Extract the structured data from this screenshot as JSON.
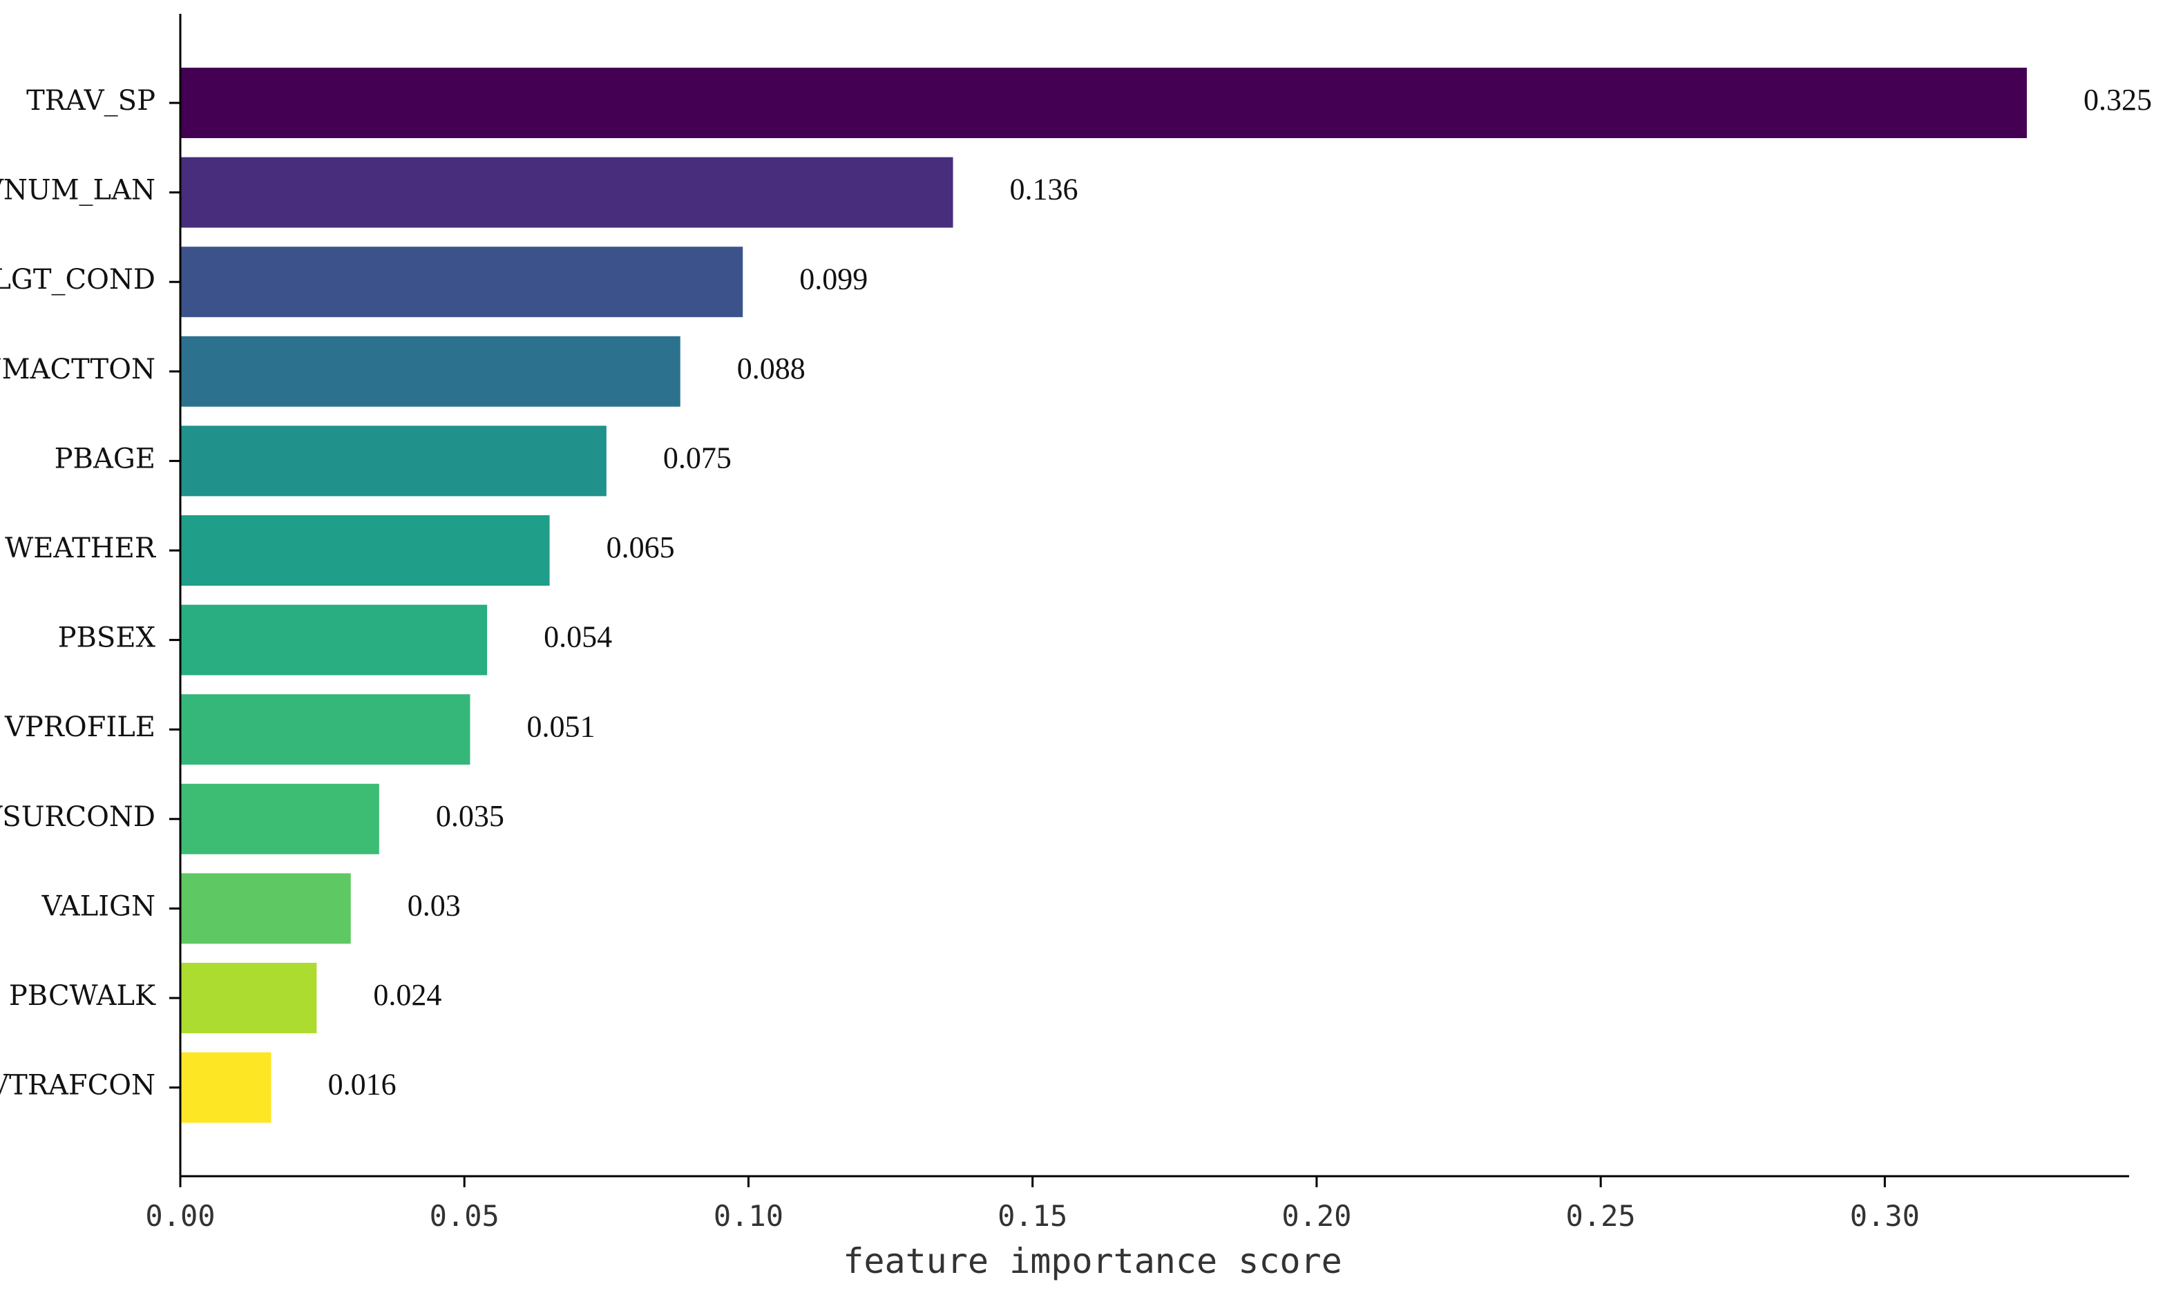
{
  "chart_data": {
    "type": "bar",
    "orientation": "horizontal",
    "categories": [
      "TRAV_SP",
      "VNUM_LAN",
      "LGT_COND",
      "NMACTTON",
      "PBAGE",
      "WEATHER",
      "PBSEX",
      "VPROFILE",
      "VSURCOND",
      "VALIGN",
      "PBCWALK",
      "VTRAFCON"
    ],
    "values": [
      0.325,
      0.136,
      0.099,
      0.088,
      0.075,
      0.065,
      0.054,
      0.051,
      0.035,
      0.03,
      0.024,
      0.016
    ],
    "value_labels": [
      "0.325",
      "0.136",
      "0.099",
      "0.088",
      "0.075",
      "0.065",
      "0.054",
      "0.051",
      "0.035",
      "0.03",
      "0.024",
      "0.016"
    ],
    "colors": [
      "#440154",
      "#482878",
      "#3e4989",
      "#31688e",
      "#26828e",
      "#1f9e89",
      "#35b779",
      "#6ece58",
      "#b5de2b",
      "#fde725"
    ],
    "bar_colors": [
      "#440154",
      "#472d7b",
      "#3b528b",
      "#2c728e",
      "#21918c",
      "#1f9e89",
      "#28ae80",
      "#35b779",
      "#3dbc74",
      "#5ec962",
      "#addc30",
      "#fde725"
    ],
    "title": "",
    "xlabel": "feature importance score",
    "ylabel": "",
    "xlim": [
      0,
      0.343
    ],
    "xticks": [
      0.0,
      0.05,
      0.1,
      0.15,
      0.2,
      0.25,
      0.3
    ],
    "xtick_labels": [
      "0.00",
      "0.05",
      "0.10",
      "0.15",
      "0.20",
      "0.25",
      "0.30"
    ],
    "grid": false,
    "legend": "none",
    "spines": "left and bottom only"
  }
}
